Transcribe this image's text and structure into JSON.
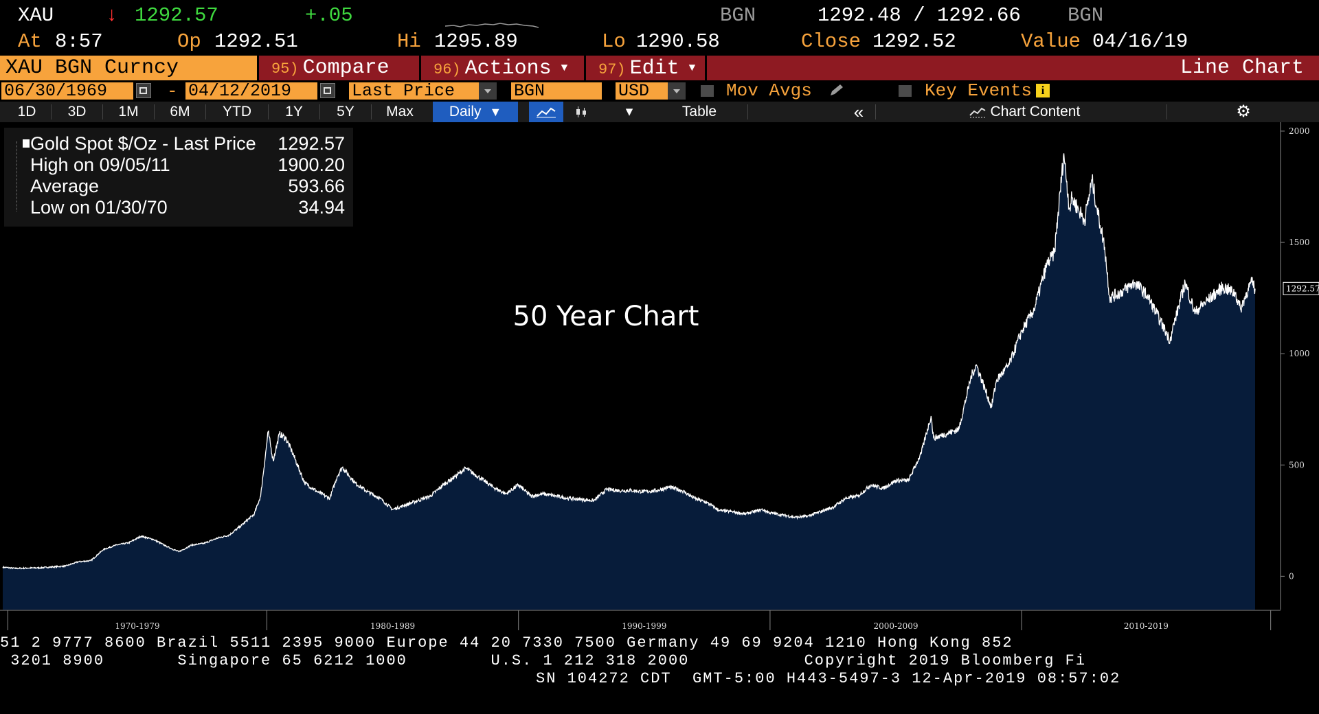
{
  "quote": {
    "ticker": "XAU",
    "arrow": "↓",
    "last": "1292.57",
    "change": "+.05",
    "source": "BGN",
    "bid_ask": "1292.48 / 1292.66",
    "source2": "BGN",
    "at_label": "At",
    "at_time": "8:57",
    "op_label": "Op",
    "op": "1292.51",
    "hi_label": "Hi",
    "hi": "1295.89",
    "lo_label": "Lo",
    "lo": "1290.58",
    "close_label": "Close",
    "close": "1292.52",
    "value_label": "Value",
    "value_date": "04/16/19"
  },
  "command_bar": {
    "security": "XAU BGN Curncy",
    "compare_num": "95)",
    "compare": "Compare",
    "actions_num": "96)",
    "actions": "Actions",
    "edit_num": "97)",
    "edit": "Edit",
    "view": "Line Chart"
  },
  "params": {
    "start_date": "06/30/1969",
    "dash": "-",
    "end_date": "04/12/2019",
    "field": "Last Price",
    "source": "BGN",
    "currency": "USD",
    "mov_avgs": "Mov Avgs",
    "key_events": "Key Events",
    "info": "i"
  },
  "periods": {
    "items": [
      "1D",
      "3D",
      "1M",
      "6M",
      "YTD",
      "1Y",
      "5Y",
      "Max"
    ],
    "frequency": "Daily",
    "table": "Table",
    "collapse": "«",
    "chart_content": "Chart Content"
  },
  "legend": {
    "title": "Gold Spot $/Oz - Last Price",
    "title_value": "1292.57",
    "high_label": "High on 09/05/11",
    "high_value": "1900.20",
    "avg_label": "Average",
    "avg_value": "593.66",
    "low_label": "Low on 01/30/70",
    "low_value": "34.94"
  },
  "chart_data": {
    "type": "area",
    "title": "50 Year Chart",
    "xlabel": "",
    "ylabel": "",
    "series": [
      {
        "name": "Gold Spot $/Oz - Last Price",
        "x": [
          1969.5,
          1970.0,
          1970.5,
          1971.0,
          1971.5,
          1972.0,
          1972.5,
          1973.0,
          1973.5,
          1974.0,
          1974.5,
          1975.0,
          1975.5,
          1976.0,
          1976.5,
          1977.0,
          1977.5,
          1978.0,
          1978.5,
          1979.0,
          1979.5,
          1979.75,
          1980.05,
          1980.25,
          1980.5,
          1980.75,
          1981.0,
          1981.5,
          1982.0,
          1982.5,
          1982.8,
          1983.0,
          1983.5,
          1984.0,
          1984.5,
          1985.0,
          1985.5,
          1986.0,
          1986.5,
          1987.0,
          1987.5,
          1987.9,
          1988.5,
          1989.0,
          1989.5,
          1990.0,
          1990.5,
          1991.0,
          1991.5,
          1992.0,
          1992.5,
          1993.0,
          1993.5,
          1994.0,
          1994.5,
          1995.0,
          1995.5,
          1996.0,
          1996.5,
          1997.0,
          1997.5,
          1998.0,
          1998.5,
          1999.0,
          1999.7,
          2000.0,
          2000.5,
          2001.0,
          2001.5,
          2002.0,
          2002.5,
          2003.0,
          2003.5,
          2004.0,
          2004.5,
          2005.0,
          2005.5,
          2006.0,
          2006.4,
          2006.5,
          2007.0,
          2007.5,
          2008.0,
          2008.2,
          2008.8,
          2009.0,
          2009.5,
          2010.0,
          2010.5,
          2011.0,
          2011.3,
          2011.68,
          2011.9,
          2012.0,
          2012.5,
          2012.8,
          2013.0,
          2013.3,
          2013.5,
          2014.0,
          2014.5,
          2015.0,
          2015.5,
          2015.9,
          2016.0,
          2016.5,
          2016.9,
          2017.0,
          2017.5,
          2018.0,
          2018.5,
          2018.7,
          2019.0,
          2019.15,
          2019.28
        ],
        "values": [
          41,
          35,
          37,
          38,
          42,
          46,
          65,
          70,
          120,
          140,
          150,
          180,
          165,
          135,
          110,
          140,
          148,
          170,
          185,
          230,
          280,
          360,
          650,
          520,
          640,
          620,
          560,
          420,
          380,
          350,
          450,
          490,
          420,
          380,
          350,
          300,
          320,
          340,
          360,
          410,
          450,
          485,
          440,
          400,
          370,
          410,
          360,
          370,
          360,
          350,
          345,
          340,
          390,
          385,
          385,
          380,
          385,
          400,
          385,
          350,
          330,
          295,
          290,
          280,
          300,
          285,
          275,
          265,
          270,
          290,
          310,
          350,
          360,
          410,
          395,
          430,
          430,
          550,
          720,
          620,
          640,
          660,
          900,
          950,
          760,
          880,
          950,
          1100,
          1200,
          1400,
          1450,
          1900,
          1650,
          1700,
          1600,
          1780,
          1650,
          1480,
          1250,
          1280,
          1320,
          1260,
          1150,
          1060,
          1110,
          1320,
          1180,
          1200,
          1250,
          1300,
          1270,
          1200,
          1290,
          1320,
          1292
        ]
      }
    ],
    "yticks": [
      0,
      500,
      1000,
      1500,
      2000
    ],
    "ylim": [
      -150,
      2040
    ],
    "xlim": [
      1969.5,
      2019.8
    ],
    "xticks": [
      "1970-1979",
      "1980-1989",
      "1990-1999",
      "2000-2009",
      "2010-2019"
    ],
    "last_value_label": "1292.57",
    "line_color": "#ffffff",
    "fill_color": "#071c3a",
    "grid": false
  },
  "footer": {
    "line1": "51 2 9777 8600 Brazil 5511 2395 9000 Europe 44 20 7330 7500 Germany 49 69 9204 1210 Hong Kong 852",
    "line2": " 3201 8900       Singapore 65 6212 1000        U.S. 1 212 318 2000           Copyright 2019 Bloomberg Fi",
    "line3": "SN 104272 CDT  GMT-5:00 H443-5497-3 12-Apr-2019 08:57:02"
  }
}
